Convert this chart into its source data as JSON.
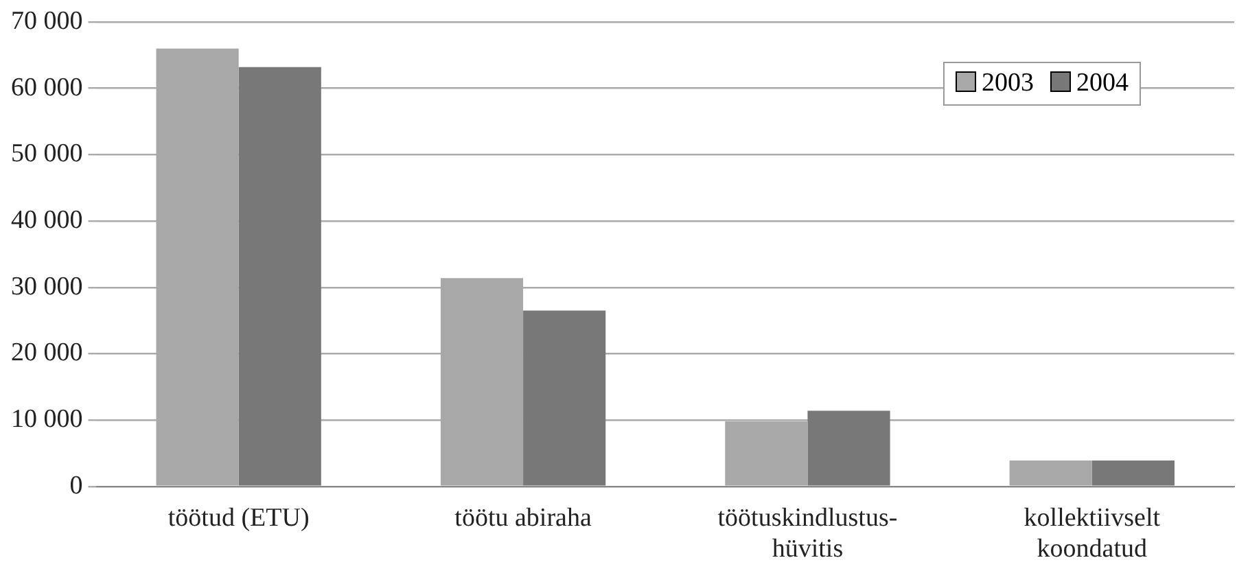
{
  "chart_data": {
    "type": "bar",
    "categories": [
      "töötud (ETU)",
      "töötu abiraha",
      "töötuskindlustus-hüvitis",
      "kollektiivselt koondatud"
    ],
    "series": [
      {
        "name": "2003",
        "color": "#a8a8a8",
        "values": [
          66000,
          31400,
          9800,
          3900
        ]
      },
      {
        "name": "2004",
        "color": "#787878",
        "values": [
          63200,
          26500,
          11400,
          3900
        ]
      }
    ],
    "ylim": [
      0,
      70000
    ],
    "yticks": [
      {
        "value": 0,
        "label": "0"
      },
      {
        "value": 10000,
        "label": "10 000"
      },
      {
        "value": 20000,
        "label": "20 000"
      },
      {
        "value": 30000,
        "label": "30 000"
      },
      {
        "value": 40000,
        "label": "40 000"
      },
      {
        "value": 50000,
        "label": "50 000"
      },
      {
        "value": 60000,
        "label": "60 000"
      },
      {
        "value": 70000,
        "label": "70 000"
      }
    ],
    "grid": "y",
    "legend": "top right"
  }
}
